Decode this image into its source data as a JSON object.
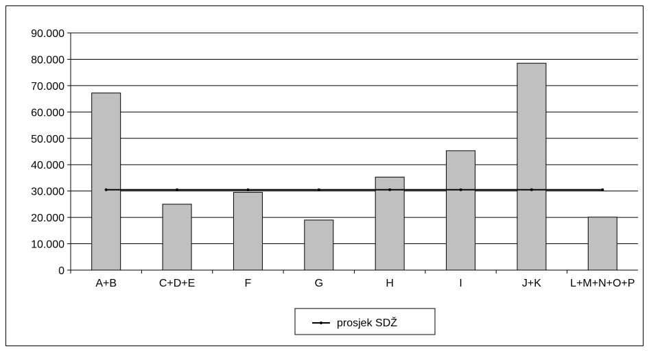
{
  "chart_data": {
    "type": "bar",
    "categories": [
      "A+B",
      "C+D+E",
      "F",
      "G",
      "H",
      "I",
      "J+K",
      "L+M+N+O+P"
    ],
    "series": [
      {
        "values": [
          67200,
          25000,
          29500,
          19000,
          35300,
          45300,
          78500,
          20100
        ]
      }
    ],
    "average_line": {
      "name": "prosjek SDŽ",
      "value": 30500
    },
    "ylim": [
      0,
      90000
    ],
    "yticks": [
      0,
      10000,
      20000,
      30000,
      40000,
      50000,
      60000,
      70000,
      80000,
      90000
    ],
    "ytick_labels": [
      "0",
      "10.000",
      "20.000",
      "30.000",
      "40.000",
      "50.000",
      "60.000",
      "70.000",
      "80.000",
      "90.000"
    ],
    "grid": true,
    "legend_position": "bottom-center",
    "colors": {
      "bar": "#c0c0c0",
      "bar_stroke": "#000000",
      "line": "#000000",
      "grid": "#000000"
    }
  }
}
